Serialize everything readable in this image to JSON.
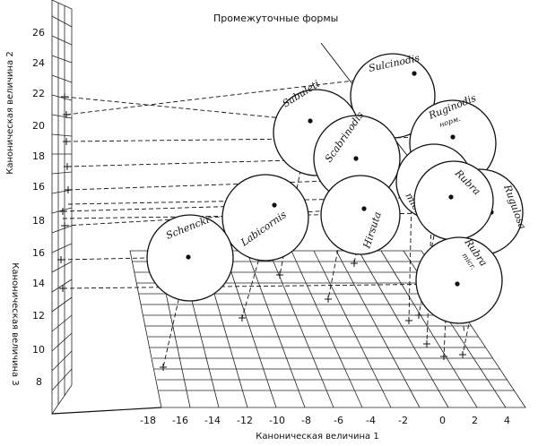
{
  "axes": {
    "x_label": "Каноническая величина 1",
    "y_label": "Каноническая величина 2",
    "z_label": "Каноническая величина 3",
    "x_ticks": [
      "-18",
      "-16",
      "-14",
      "-12",
      "-10",
      "-8",
      "-6",
      "-4",
      "-2",
      "0",
      "2",
      "4"
    ],
    "y_ticks": [
      "26",
      "24",
      "22",
      "20",
      "18",
      "16"
    ],
    "z_ticks": [
      "18",
      "16",
      "14",
      "12",
      "10",
      "8"
    ]
  },
  "annotation": "Промежуточные формы",
  "groups": [
    {
      "id": "sulcinodis",
      "label": "Sulcinodis"
    },
    {
      "id": "sabuleti",
      "label": "Sabuleti"
    },
    {
      "id": "ruginodis",
      "label": "Ruginodis",
      "sublabel": "норм."
    },
    {
      "id": "scabrinodis",
      "label": "Scabrinodis"
    },
    {
      "id": "rubra",
      "label": "Rubra"
    },
    {
      "id": "rugulosa",
      "label": "Rugulosa"
    },
    {
      "id": "micr",
      "label": "micr."
    },
    {
      "id": "hirsuta",
      "label": "Hirsuta"
    },
    {
      "id": "labicornis",
      "label": "Labicornis"
    },
    {
      "id": "schencki",
      "label": "Schencki"
    },
    {
      "id": "rubra-micr",
      "label": "Rubra",
      "sublabel": "micr."
    }
  ]
}
